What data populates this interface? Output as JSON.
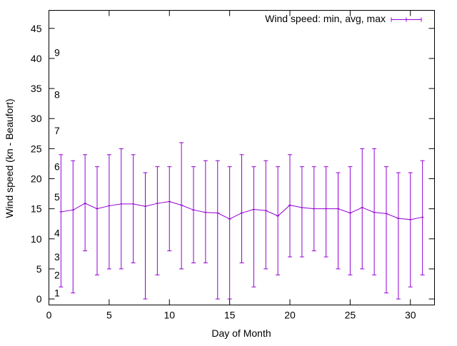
{
  "chart_data": {
    "type": "errorbar-line",
    "title": "",
    "xlabel": "Day of Month",
    "ylabel": "Wind speed (kn - Beaufort)",
    "xlim": [
      0,
      32
    ],
    "ylim": [
      -1,
      48
    ],
    "xticks": [
      0,
      5,
      10,
      15,
      20,
      25,
      30
    ],
    "yticks": [
      0,
      5,
      10,
      15,
      20,
      25,
      30,
      35,
      40,
      45
    ],
    "grid": false,
    "legend": {
      "position": "top-right",
      "label": "Wind speed: min, avg, max"
    },
    "beaufort_labels": [
      {
        "label": "1",
        "y": 1
      },
      {
        "label": "2",
        "y": 4
      },
      {
        "label": "3",
        "y": 7
      },
      {
        "label": "4",
        "y": 11
      },
      {
        "label": "5",
        "y": 17
      },
      {
        "label": "6",
        "y": 22
      },
      {
        "label": "7",
        "y": 28
      },
      {
        "label": "8",
        "y": 34
      },
      {
        "label": "9",
        "y": 41
      }
    ],
    "series": [
      {
        "color": "#9400d3",
        "points": [
          {
            "day": 1,
            "min": 2,
            "avg": 14.5,
            "max": 24
          },
          {
            "day": 2,
            "min": 1,
            "avg": 14.8,
            "max": 23
          },
          {
            "day": 3,
            "min": 8,
            "avg": 15.9,
            "max": 24
          },
          {
            "day": 4,
            "min": 4,
            "avg": 15.0,
            "max": 22
          },
          {
            "day": 5,
            "min": 5,
            "avg": 15.5,
            "max": 24
          },
          {
            "day": 6,
            "min": 5,
            "avg": 15.8,
            "max": 25
          },
          {
            "day": 7,
            "min": 6,
            "avg": 15.8,
            "max": 24
          },
          {
            "day": 8,
            "min": 0,
            "avg": 15.4,
            "max": 21
          },
          {
            "day": 9,
            "min": 4,
            "avg": 15.9,
            "max": 22
          },
          {
            "day": 10,
            "min": 8,
            "avg": 16.2,
            "max": 22
          },
          {
            "day": 11,
            "min": 5,
            "avg": 15.6,
            "max": 26
          },
          {
            "day": 12,
            "min": 6,
            "avg": 14.8,
            "max": 22
          },
          {
            "day": 13,
            "min": 6,
            "avg": 14.4,
            "max": 23
          },
          {
            "day": 14,
            "min": 0,
            "avg": 14.3,
            "max": 23
          },
          {
            "day": 15,
            "min": 0,
            "avg": 13.3,
            "max": 22
          },
          {
            "day": 16,
            "min": 6,
            "avg": 14.3,
            "max": 24
          },
          {
            "day": 17,
            "min": 2,
            "avg": 14.9,
            "max": 22
          },
          {
            "day": 18,
            "min": 5,
            "avg": 14.7,
            "max": 23
          },
          {
            "day": 19,
            "min": 4,
            "avg": 13.8,
            "max": 22
          },
          {
            "day": 20,
            "min": 7,
            "avg": 15.6,
            "max": 24
          },
          {
            "day": 21,
            "min": 7,
            "avg": 15.2,
            "max": 22
          },
          {
            "day": 22,
            "min": 8,
            "avg": 15.0,
            "max": 22
          },
          {
            "day": 23,
            "min": 7,
            "avg": 15.0,
            "max": 22
          },
          {
            "day": 24,
            "min": 5,
            "avg": 15.0,
            "max": 21
          },
          {
            "day": 25,
            "min": 4,
            "avg": 14.3,
            "max": 22
          },
          {
            "day": 26,
            "min": 5,
            "avg": 15.2,
            "max": 25
          },
          {
            "day": 27,
            "min": 4,
            "avg": 14.4,
            "max": 25
          },
          {
            "day": 28,
            "min": 1,
            "avg": 14.2,
            "max": 22
          },
          {
            "day": 29,
            "min": 0,
            "avg": 13.4,
            "max": 21
          },
          {
            "day": 30,
            "min": 2,
            "avg": 13.2,
            "max": 21
          },
          {
            "day": 31,
            "min": 4,
            "avg": 13.6,
            "max": 23
          }
        ]
      }
    ]
  }
}
